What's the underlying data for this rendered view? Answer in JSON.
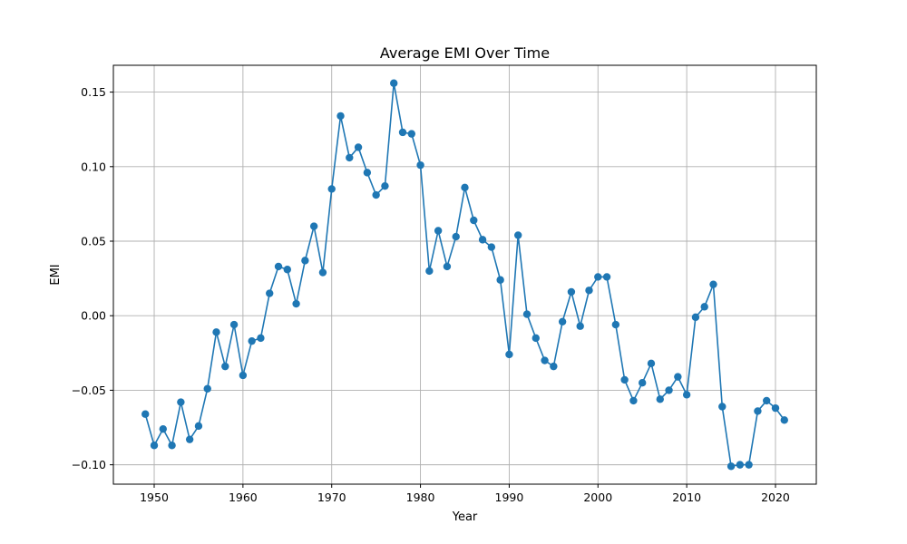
{
  "chart_data": {
    "type": "line",
    "title": "Average EMI Over Time",
    "xlabel": "Year",
    "ylabel": "EMI",
    "xlim": [
      1945.4,
      2024.6
    ],
    "ylim": [
      -0.113,
      0.168
    ],
    "grid": true,
    "x_ticks": [
      1950,
      1960,
      1970,
      1980,
      1990,
      2000,
      2010,
      2020
    ],
    "x_tick_labels": [
      "1950",
      "1960",
      "1970",
      "1980",
      "1990",
      "2000",
      "2010",
      "2020"
    ],
    "y_ticks": [
      -0.1,
      -0.05,
      0.0,
      0.05,
      0.1,
      0.15
    ],
    "y_tick_labels": [
      "−0.10",
      "−0.05",
      "0.00",
      "0.05",
      "0.10",
      "0.15"
    ],
    "color": "#1f77b4",
    "marker": "circle",
    "x": [
      1949,
      1950,
      1951,
      1952,
      1953,
      1954,
      1955,
      1956,
      1957,
      1958,
      1959,
      1960,
      1961,
      1962,
      1963,
      1964,
      1965,
      1966,
      1967,
      1968,
      1969,
      1970,
      1971,
      1972,
      1973,
      1974,
      1975,
      1976,
      1977,
      1978,
      1979,
      1980,
      1981,
      1982,
      1983,
      1984,
      1985,
      1986,
      1987,
      1988,
      1989,
      1990,
      1991,
      1992,
      1993,
      1994,
      1995,
      1996,
      1997,
      1998,
      1999,
      2000,
      2001,
      2002,
      2003,
      2004,
      2005,
      2006,
      2007,
      2008,
      2009,
      2010,
      2011,
      2012,
      2013,
      2014,
      2015,
      2016,
      2017,
      2018,
      2019,
      2020,
      2021
    ],
    "y": [
      -0.066,
      -0.087,
      -0.076,
      -0.087,
      -0.058,
      -0.083,
      -0.074,
      -0.049,
      -0.011,
      -0.034,
      -0.006,
      -0.04,
      -0.017,
      -0.015,
      0.015,
      0.033,
      0.031,
      0.008,
      0.037,
      0.06,
      0.029,
      0.085,
      0.134,
      0.106,
      0.113,
      0.096,
      0.081,
      0.087,
      0.156,
      0.123,
      0.122,
      0.101,
      0.03,
      0.057,
      0.033,
      0.053,
      0.086,
      0.064,
      0.051,
      0.046,
      0.024,
      -0.026,
      0.054,
      0.001,
      -0.015,
      -0.03,
      -0.034,
      -0.004,
      0.016,
      -0.007,
      0.017,
      0.026,
      0.026,
      -0.006,
      -0.043,
      -0.057,
      -0.045,
      -0.032,
      -0.056,
      -0.05,
      -0.041,
      -0.053,
      -0.001,
      0.006,
      0.021,
      -0.061,
      -0.101,
      -0.1,
      -0.1,
      -0.064,
      -0.057,
      -0.062,
      -0.07
    ]
  }
}
